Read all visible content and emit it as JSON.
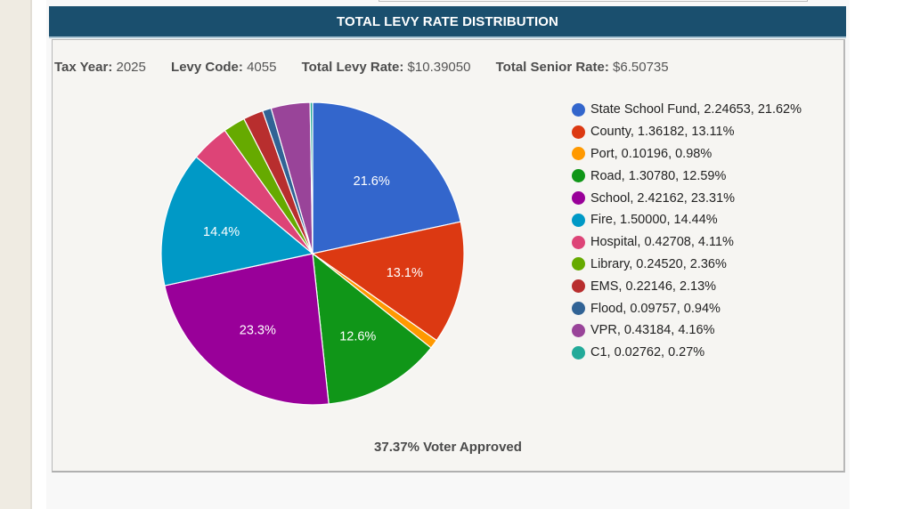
{
  "header": {
    "title": "TOTAL LEVY RATE DISTRIBUTION"
  },
  "info": {
    "tax_year_label": "Tax Year:",
    "tax_year": "2025",
    "levy_code_label": "Levy Code:",
    "levy_code": "4055",
    "total_levy_rate_label": "Total Levy Rate:",
    "total_levy_rate": "$10.39050",
    "total_senior_rate_label": "Total Senior Rate:",
    "total_senior_rate": "$6.50735"
  },
  "footer": {
    "voter_approved": "37.37% Voter Approved"
  },
  "chart_data": {
    "type": "pie",
    "title": "TOTAL LEVY RATE DISTRIBUTION",
    "legend_position": "right",
    "start": "top-clockwise",
    "slices": [
      {
        "name": "State School Fund",
        "value": 2.24653,
        "percent": 21.62,
        "color": "#3366cc",
        "label": "21.6%",
        "legend": "State School Fund, 2.24653, 21.62%"
      },
      {
        "name": "County",
        "value": 1.36182,
        "percent": 13.11,
        "color": "#dc3912",
        "label": "13.1%",
        "legend": "County, 1.36182, 13.11%"
      },
      {
        "name": "Port",
        "value": 0.10196,
        "percent": 0.98,
        "color": "#ff9900",
        "label": "",
        "legend": "Port, 0.10196, 0.98%"
      },
      {
        "name": "Road",
        "value": 1.3078,
        "percent": 12.59,
        "color": "#109618",
        "label": "12.6%",
        "legend": "Road, 1.30780, 12.59%"
      },
      {
        "name": "School",
        "value": 2.42162,
        "percent": 23.31,
        "color": "#990099",
        "label": "23.3%",
        "legend": "School, 2.42162, 23.31%"
      },
      {
        "name": "Fire",
        "value": 1.5,
        "percent": 14.44,
        "color": "#0099c6",
        "label": "14.4%",
        "legend": "Fire, 1.50000, 14.44%"
      },
      {
        "name": "Hospital",
        "value": 0.42708,
        "percent": 4.11,
        "color": "#dd4477",
        "label": "",
        "legend": "Hospital, 0.42708, 4.11%"
      },
      {
        "name": "Library",
        "value": 0.2452,
        "percent": 2.36,
        "color": "#66aa00",
        "label": "",
        "legend": "Library, 0.24520, 2.36%"
      },
      {
        "name": "EMS",
        "value": 0.22146,
        "percent": 2.13,
        "color": "#b82e2e",
        "label": "",
        "legend": "EMS, 0.22146, 2.13%"
      },
      {
        "name": "Flood",
        "value": 0.09757,
        "percent": 0.94,
        "color": "#316395",
        "label": "",
        "legend": "Flood, 0.09757, 0.94%"
      },
      {
        "name": "VPR",
        "value": 0.43184,
        "percent": 4.16,
        "color": "#994499",
        "label": "",
        "legend": "VPR, 0.43184, 4.16%"
      },
      {
        "name": "C1",
        "value": 0.02762,
        "percent": 0.27,
        "color": "#22aa99",
        "label": "",
        "legend": "C1, 0.02762, 0.27%"
      }
    ]
  }
}
